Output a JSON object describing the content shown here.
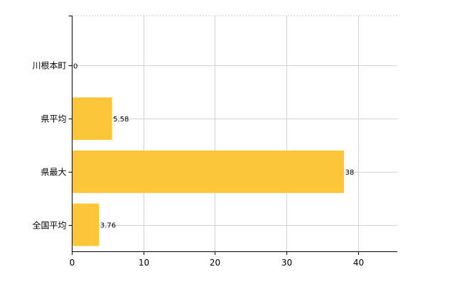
{
  "chart_data": {
    "type": "bar",
    "orientation": "horizontal",
    "categories": [
      "川根本町",
      "県平均",
      "県最大",
      "全国平均"
    ],
    "values": [
      0,
      5.58,
      38,
      3.76
    ],
    "data_labels": [
      "0",
      "5.58",
      "38",
      "3.76"
    ],
    "x_ticks": [
      0,
      10,
      20,
      30,
      40
    ],
    "xlim": [
      0,
      45.5
    ],
    "bar_color": "#fcc63b",
    "grid": true,
    "title": "",
    "xlabel": "",
    "ylabel": ""
  }
}
